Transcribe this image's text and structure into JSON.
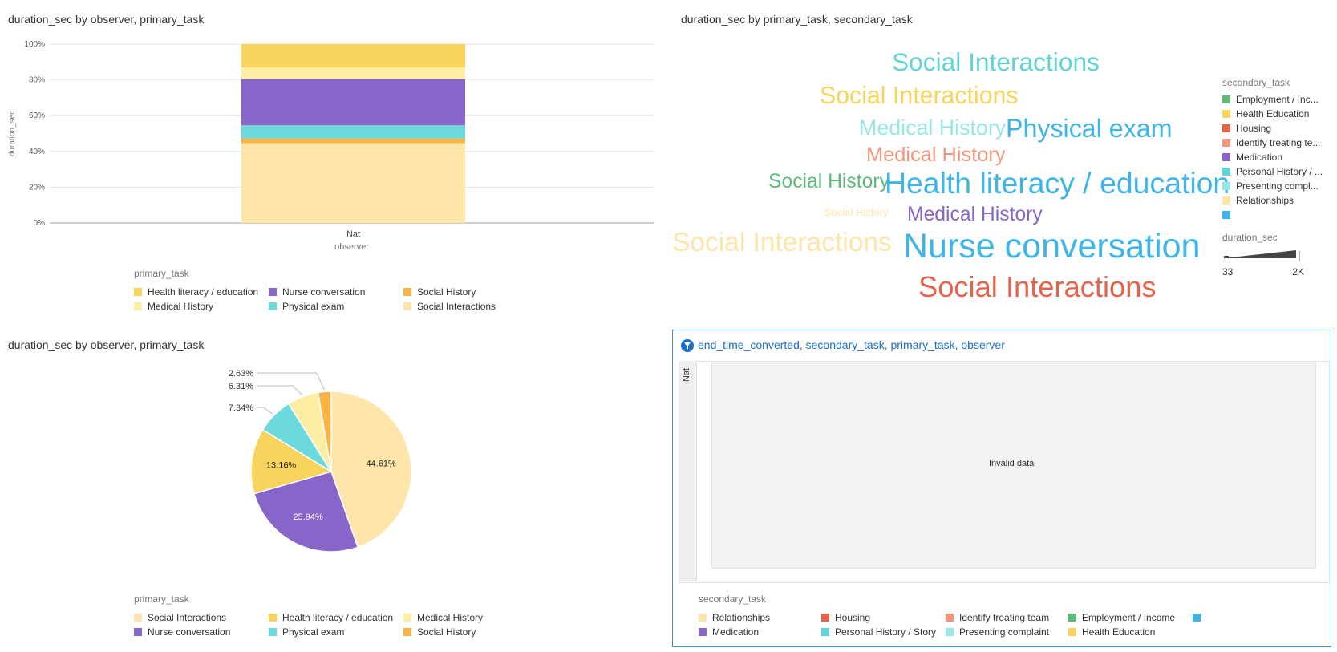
{
  "panels": {
    "bar": {
      "title": "duration_sec by observer, primary_task"
    },
    "wordcloud": {
      "title": "duration_sec by primary_task, secondary_task"
    },
    "pie": {
      "title": "duration_sec by observer, primary_task"
    },
    "table": {
      "title": "end_time_converted, secondary_task, primary_task, observer",
      "facet_label": "Nat",
      "message": "Invalid data",
      "filter_icon": "filter-icon"
    }
  },
  "colors": {
    "Health literacy / education": "#f9d45c",
    "Medical History": "#fdeea4",
    "Nurse conversation": "#8765c9",
    "Physical exam": "#6cd9dc",
    "Social History": "#f9b347",
    "Social Interactions": "#fee6ab",
    "Relationships": "#fee6ab",
    "Medication": "#8765c9",
    "Housing": "#e5634b",
    "Personal History / Story": "#62d3d6",
    "Identify treating team": "#f1967c",
    "Presenting complaint": "#99e6e8",
    "Employment / Income": "#5dba79",
    "Health Education": "#f9d45c",
    "Blank": "#3fb4e8"
  },
  "chart_data": [
    {
      "type": "bar",
      "stacked": true,
      "normalized": true,
      "title": "duration_sec by observer, primary_task",
      "xlabel": "observer",
      "ylabel": "duration_sec",
      "categories": [
        "Nat"
      ],
      "ylim": [
        0,
        100
      ],
      "yticks": [
        "0%",
        "20%",
        "40%",
        "60%",
        "80%",
        "100%"
      ],
      "series": [
        {
          "name": "Social Interactions",
          "values": [
            44.61
          ]
        },
        {
          "name": "Social History",
          "values": [
            2.63
          ]
        },
        {
          "name": "Physical exam",
          "values": [
            7.34
          ]
        },
        {
          "name": "Nurse conversation",
          "values": [
            25.94
          ]
        },
        {
          "name": "Medical History",
          "values": [
            6.31
          ]
        },
        {
          "name": "Health literacy / education",
          "values": [
            13.16
          ]
        }
      ],
      "legend": {
        "title": "primary_task",
        "position": "bottom",
        "items": [
          "Health literacy / education",
          "Nurse conversation",
          "Social History",
          "Medical History",
          "Physical exam",
          "Social Interactions"
        ]
      }
    },
    {
      "type": "wordcloud",
      "title": "duration_sec by primary_task, secondary_task",
      "words": [
        {
          "text": "Social Interactions",
          "color_key": "Personal History / Story",
          "duration_sec": 900
        },
        {
          "text": "Social Interactions",
          "color_key": "Health Education",
          "duration_sec": 800
        },
        {
          "text": "Medical History",
          "color_key": "Presenting complaint",
          "duration_sec": 560
        },
        {
          "text": "Physical exam",
          "color_key": "Blank",
          "duration_sec": 940
        },
        {
          "text": "Medical History",
          "color_key": "Identify treating team",
          "duration_sec": 480
        },
        {
          "text": "Social History",
          "color_key": "Employment / Income",
          "duration_sec": 440
        },
        {
          "text": "Health literacy / education",
          "color_key": "Blank",
          "duration_sec": 1400
        },
        {
          "text": "Social History",
          "color_key": "Relationships",
          "duration_sec": 33
        },
        {
          "text": "Medical History",
          "color_key": "Medication",
          "duration_sec": 440
        },
        {
          "text": "Social Interactions",
          "color_key": "Relationships",
          "duration_sec": 1050
        },
        {
          "text": "Nurse conversation",
          "color_key": "Blank",
          "duration_sec": 2000
        },
        {
          "text": "Social Interactions",
          "color_key": "Housing",
          "duration_sec": 1300
        }
      ],
      "legend": {
        "title": "secondary_task",
        "position": "right",
        "items": [
          {
            "label": "Employment / Inc...",
            "key": "Employment / Income"
          },
          {
            "label": "Health Education",
            "key": "Health Education"
          },
          {
            "label": "Housing",
            "key": "Housing"
          },
          {
            "label": "Identify treating te...",
            "key": "Identify treating team"
          },
          {
            "label": "Medication",
            "key": "Medication"
          },
          {
            "label": "Personal History / ...",
            "key": "Personal History / Story"
          },
          {
            "label": "Presenting compl...",
            "key": "Presenting complaint"
          },
          {
            "label": "Relationships",
            "key": "Relationships"
          },
          {
            "label": "",
            "key": "Blank"
          }
        ]
      },
      "size_legend": {
        "title": "duration_sec",
        "min_label": "33",
        "max_label": "2K"
      }
    },
    {
      "type": "pie",
      "title": "duration_sec by observer, primary_task",
      "slices": [
        {
          "name": "Social Interactions",
          "value": 44.61,
          "label": "44.61%"
        },
        {
          "name": "Nurse conversation",
          "value": 25.94,
          "label": "25.94%"
        },
        {
          "name": "Health literacy / education",
          "value": 13.16,
          "label": "13.16%"
        },
        {
          "name": "Physical exam",
          "value": 7.34,
          "label": "7.34%"
        },
        {
          "name": "Medical History",
          "value": 6.31,
          "label": "6.31%"
        },
        {
          "name": "Social History",
          "value": 2.63,
          "label": "2.63%"
        }
      ],
      "legend": {
        "title": "primary_task",
        "position": "bottom",
        "items": [
          "Social Interactions",
          "Health literacy / education",
          "Medical History",
          "Nurse conversation",
          "Physical exam",
          "Social History"
        ]
      }
    }
  ],
  "table_legend": {
    "title": "secondary_task",
    "items": [
      {
        "label": "Relationships",
        "key": "Relationships"
      },
      {
        "label": "Housing",
        "key": "Housing"
      },
      {
        "label": "Identify treating team",
        "key": "Identify treating team"
      },
      {
        "label": "Employment / Income",
        "key": "Employment / Income"
      },
      {
        "label": "",
        "key": "Blank"
      },
      {
        "label": "Medication",
        "key": "Medication"
      },
      {
        "label": "Personal History / Story",
        "key": "Personal History / Story"
      },
      {
        "label": "Presenting complaint",
        "key": "Presenting complaint"
      },
      {
        "label": "Health Education",
        "key": "Health Education"
      }
    ]
  }
}
